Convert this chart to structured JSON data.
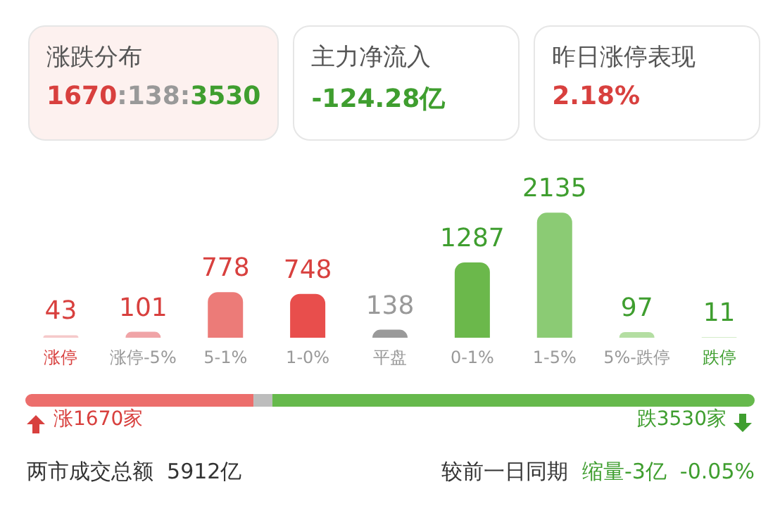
{
  "chart_data": [
    {
      "type": "other",
      "annotations": [
        "涨跌分布",
        "1670:138:3530",
        "主力净流入",
        "-124.28亿",
        "昨日涨停表现",
        "2.18%"
      ]
    },
    {
      "type": "bar",
      "categories": [
        "涨停",
        "涨停-5%",
        "5-1%",
        "1-0%",
        "平盘",
        "0-1%",
        "1-5%",
        "5%-跌停",
        "跌停"
      ],
      "values": [
        43,
        101,
        778,
        748,
        138,
        1287,
        2135,
        97,
        11
      ],
      "colors": [
        "#f6c9ca",
        "#f0a4a7",
        "#ec7b78",
        "#e84e4c",
        "#9a9a9a",
        "#6bb84b",
        "#8bcb74",
        "#b4dea2",
        "#d4ecc9"
      ],
      "data_labels": true
    },
    {
      "type": "bar",
      "orientation": "horizontal",
      "stacked": true,
      "series": [
        {
          "values": [
            1670
          ],
          "color": "#ec6e6c",
          "value_labels": [
            "涨1670家"
          ]
        },
        {
          "values": [
            138
          ],
          "color": "#bdbdbd",
          "value_labels": [
            null
          ]
        },
        {
          "values": [
            3530
          ],
          "color": "#66b94c",
          "value_labels": [
            "跌3530家"
          ]
        }
      ],
      "annotations": [
        "两市成交总额  5912亿",
        "较前一日同期",
        "缩量-3亿  -0.05%"
      ]
    }
  ]
}
